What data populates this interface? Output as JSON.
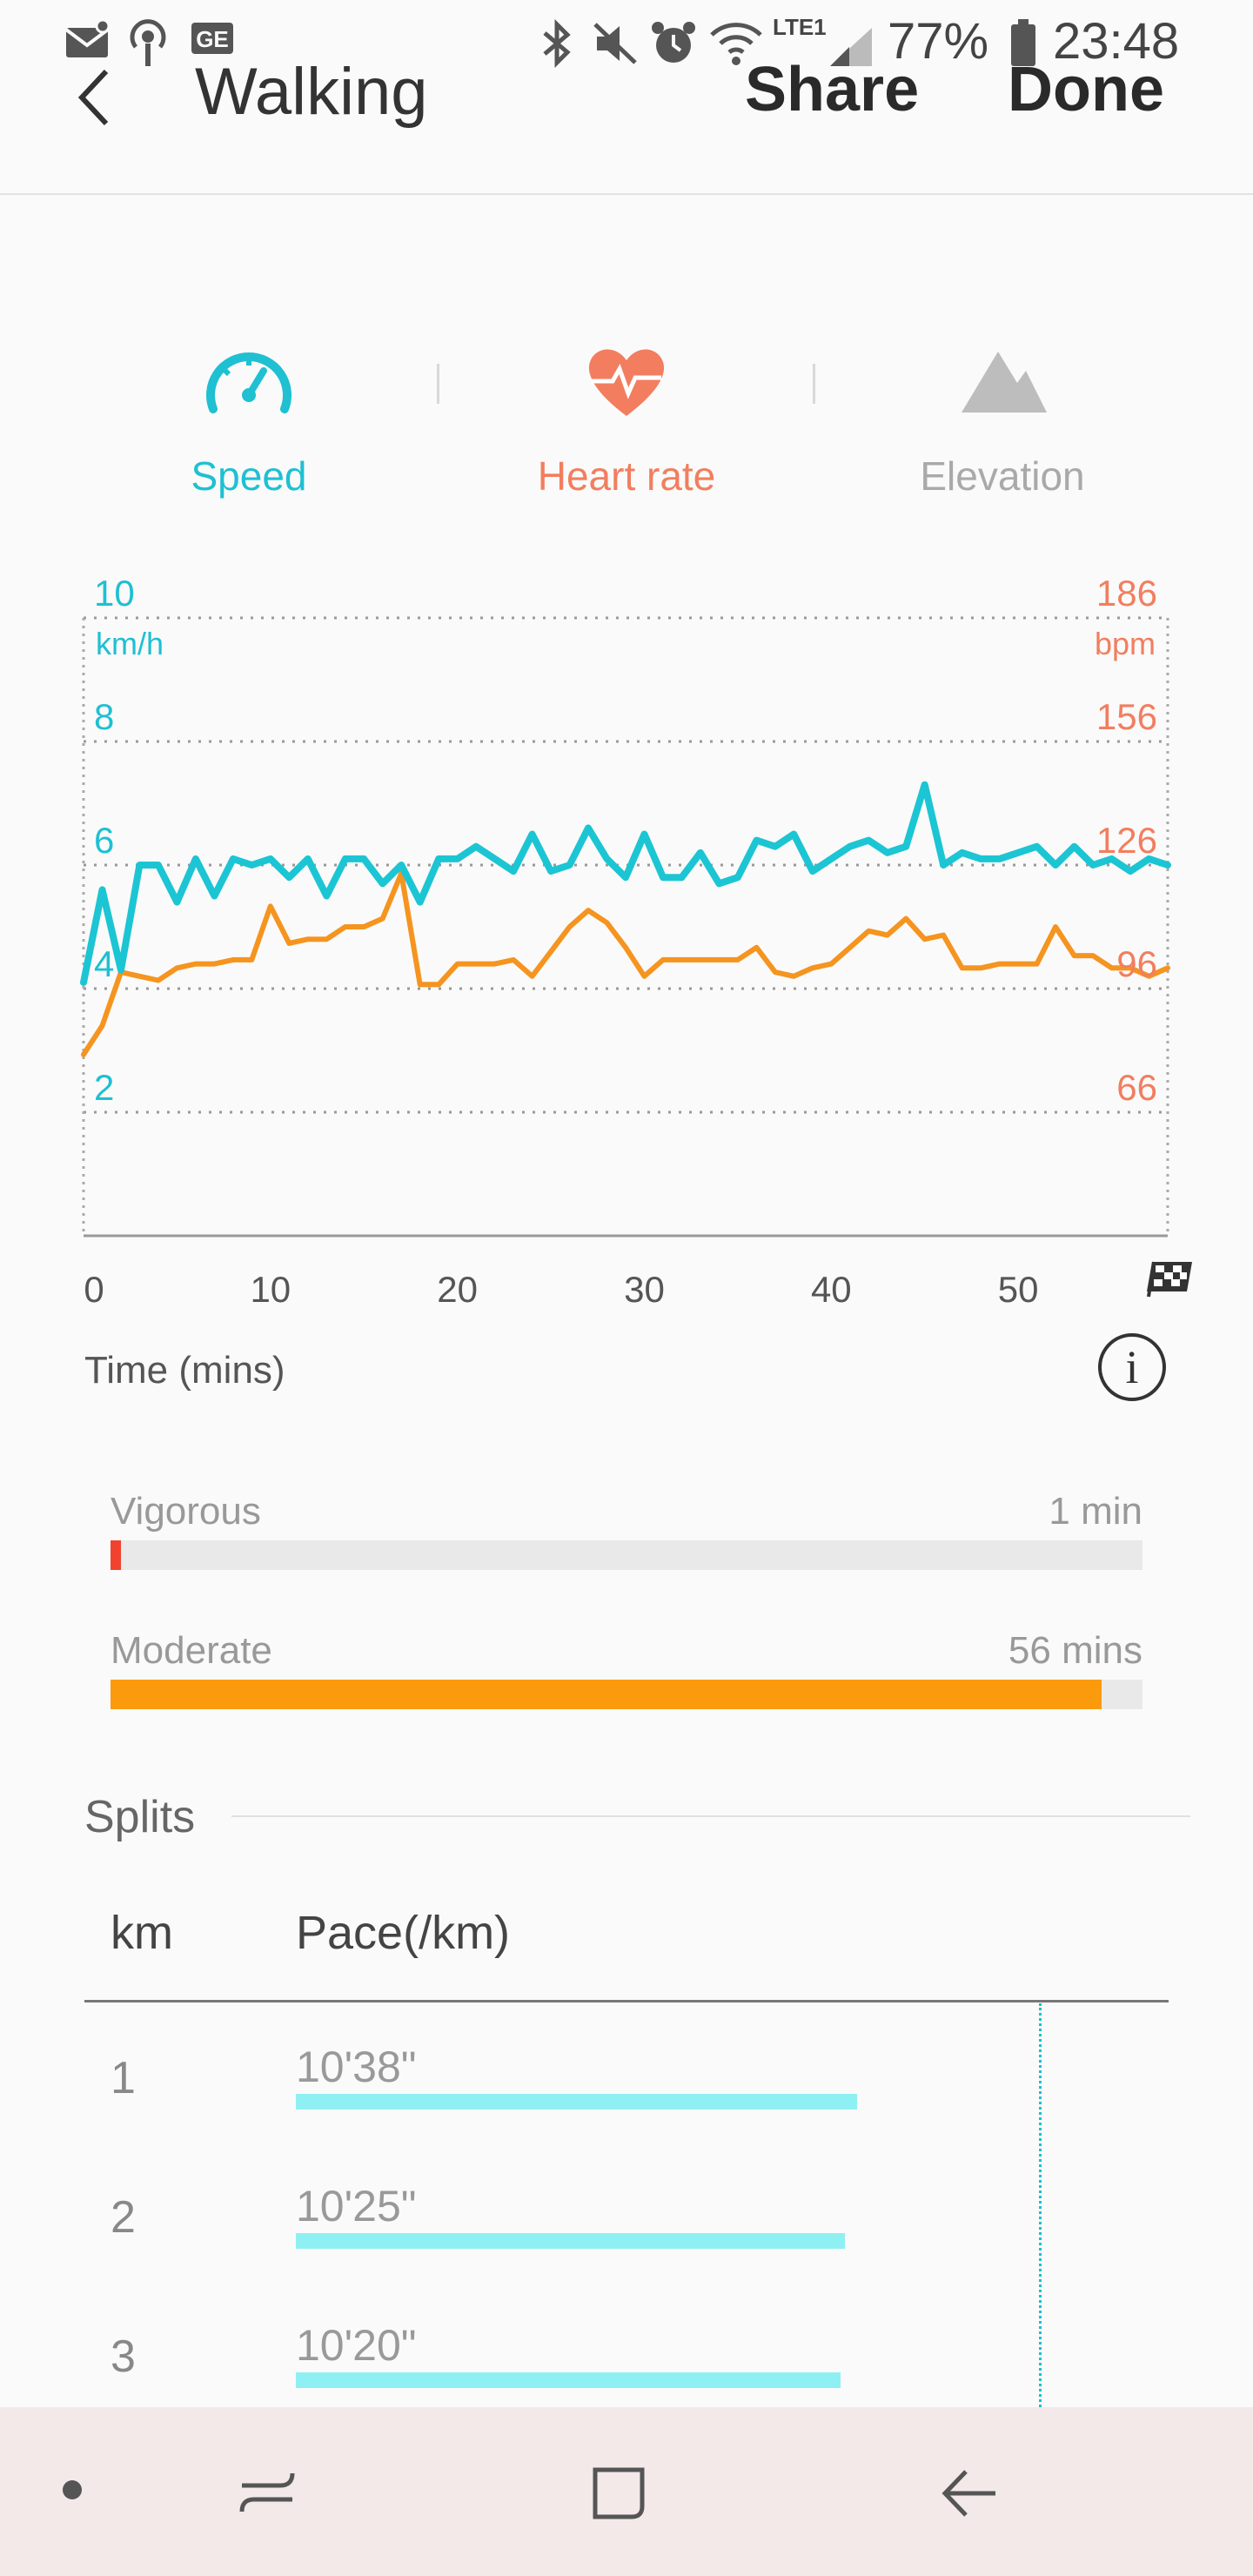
{
  "status_bar": {
    "battery": "77%",
    "time": "23:48",
    "network": "LTE1",
    "icons": [
      "mail-icon",
      "podcast-icon",
      "ge-icon",
      "bluetooth-icon",
      "mute-icon",
      "alarm-icon",
      "wifi-icon",
      "signal-icon",
      "battery-icon"
    ]
  },
  "app_bar": {
    "title": "Walking",
    "share_label": "Share",
    "done_label": "Done"
  },
  "tabs": [
    {
      "label": "Speed",
      "icon": "speedometer-icon",
      "color": "#1ec0d2"
    },
    {
      "label": "Heart rate",
      "icon": "heart-rate-icon",
      "color": "#f27e5f"
    },
    {
      "label": "Elevation",
      "icon": "mountain-icon",
      "color": "#a9a9a9"
    }
  ],
  "chart_data": {
    "type": "line",
    "xlabel": "Time (mins)",
    "x_ticks": [
      0,
      10,
      20,
      30,
      40,
      50
    ],
    "xlim": [
      0,
      58
    ],
    "y_left": {
      "unit": "km/h",
      "ticks": [
        2,
        4,
        6,
        8,
        10
      ],
      "ylim": [
        0,
        10
      ]
    },
    "y_right": {
      "unit": "bpm",
      "ticks": [
        66,
        96,
        126,
        156,
        186
      ],
      "ylim": [
        36,
        186
      ]
    },
    "grid": true,
    "series": [
      {
        "axis": "left",
        "color": "#1cc5d3",
        "x": [
          0,
          1,
          2,
          3,
          4,
          5,
          6,
          7,
          8,
          9,
          10,
          11,
          12,
          13,
          14,
          15,
          16,
          17,
          18,
          19,
          20,
          21,
          22,
          23,
          24,
          25,
          26,
          27,
          28,
          29,
          30,
          31,
          32,
          33,
          34,
          35,
          36,
          37,
          38,
          39,
          40,
          41,
          42,
          43,
          44,
          45,
          46,
          47,
          48,
          49,
          50,
          51,
          52,
          53,
          54,
          55,
          56,
          57,
          58
        ],
        "values": [
          4.1,
          5.6,
          4.3,
          6.0,
          6.0,
          5.4,
          6.1,
          5.5,
          6.1,
          6.0,
          6.1,
          5.8,
          6.1,
          5.5,
          6.1,
          6.1,
          5.7,
          6.0,
          5.4,
          6.1,
          6.1,
          6.3,
          6.1,
          5.9,
          6.5,
          5.9,
          6.0,
          6.6,
          6.1,
          5.8,
          6.5,
          5.8,
          5.8,
          6.2,
          5.7,
          5.8,
          6.4,
          6.3,
          6.5,
          5.9,
          6.1,
          6.3,
          6.4,
          6.2,
          6.3,
          7.3,
          6.0,
          6.2,
          6.1,
          6.1,
          6.2,
          6.3,
          6.0,
          6.3,
          6.0,
          6.1,
          5.9,
          6.1,
          6.0
        ]
      },
      {
        "axis": "right",
        "color": "#f5941f",
        "x": [
          0,
          1,
          2,
          3,
          4,
          5,
          6,
          7,
          8,
          9,
          10,
          11,
          12,
          13,
          14,
          15,
          16,
          17,
          18,
          19,
          20,
          21,
          22,
          23,
          24,
          25,
          26,
          27,
          28,
          29,
          30,
          31,
          32,
          33,
          34,
          35,
          36,
          37,
          38,
          39,
          40,
          41,
          42,
          43,
          44,
          45,
          46,
          47,
          48,
          49,
          50,
          51,
          52,
          53,
          54,
          55,
          56,
          57,
          58
        ],
        "values": [
          80,
          87,
          100,
          99,
          98,
          101,
          102,
          102,
          103,
          103,
          116,
          107,
          108,
          108,
          111,
          111,
          113,
          124,
          97,
          97,
          102,
          102,
          102,
          103,
          99,
          105,
          111,
          115,
          112,
          106,
          99,
          103,
          103,
          103,
          103,
          103,
          106,
          100,
          99,
          101,
          102,
          106,
          110,
          109,
          113,
          108,
          109,
          101,
          101,
          102,
          102,
          102,
          111,
          104,
          104,
          101,
          101,
          99,
          101
        ]
      }
    ]
  },
  "intensity": [
    {
      "label": "Vigorous",
      "value": "1 min",
      "fraction": 0.01,
      "color": "#f0422f"
    },
    {
      "label": "Moderate",
      "value": "56 mins",
      "fraction": 0.96,
      "color": "#fb9a0d"
    }
  ],
  "splits": {
    "title": "Splits",
    "col_km": "km",
    "col_pace": "Pace(/km)",
    "rows": [
      {
        "km": "1",
        "pace": "10'38\"",
        "fraction": 0.645
      },
      {
        "km": "2",
        "pace": "10'25\"",
        "fraction": 0.631
      },
      {
        "km": "3",
        "pace": "10'20\"",
        "fraction": 0.626
      }
    ]
  },
  "nav_bar": {
    "icons": [
      "dot-icon",
      "recent-apps-icon",
      "home-icon",
      "back-icon"
    ]
  }
}
